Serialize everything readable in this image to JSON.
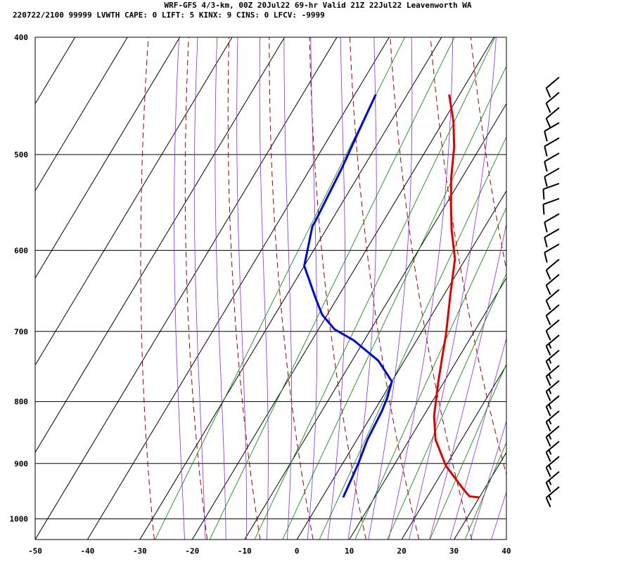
{
  "header": {
    "line1": "WRF-GFS 4/3-km, 00Z 20Jul22 69-hr Valid 21Z 22Jul22 Leavenworth WA",
    "line2": "220722/2100 99999  LVWTH   CAPE:     0 LIFT:     5 KINX:     9 CINS:     0 LFCV: -9999"
  },
  "colors": {
    "temperature": "#e00000",
    "dewpoint": "#0000e0",
    "dry_adiabat": "#990000",
    "moist_adiabat": "#8a2be2",
    "isotherm": "#000000",
    "mixing_ratio": "#008000"
  },
  "chart_data": {
    "type": "line",
    "chart_kind": "skew-T log-P sounding",
    "x_axis": {
      "range": [
        -50,
        40
      ],
      "ticks": [
        -50,
        -40,
        -30,
        -20,
        -10,
        0,
        10,
        20,
        30,
        40
      ],
      "ticklabels": [
        "-50",
        "-40",
        "-30",
        "-20",
        "-10",
        "0",
        "10",
        "20",
        "30",
        "40"
      ]
    },
    "y_axis": {
      "scale": "log",
      "reversed": true,
      "range": [
        1040,
        400
      ],
      "ticks": [
        400,
        500,
        600,
        700,
        800,
        900,
        1000
      ],
      "ticklabels": [
        "400",
        "500",
        "600",
        "700",
        "800",
        "900",
        "1000"
      ]
    },
    "grid": true,
    "series": [
      {
        "key": "temperature",
        "points": [
          [
            30,
            960
          ],
          [
            28,
            958
          ],
          [
            26,
            945
          ],
          [
            20,
            904
          ],
          [
            15,
            860
          ],
          [
            12,
            822
          ],
          [
            9,
            772
          ],
          [
            7,
            738
          ],
          [
            5,
            705
          ],
          [
            1,
            650
          ],
          [
            -2,
            610
          ],
          [
            -6,
            577
          ],
          [
            -9,
            550
          ],
          [
            -12,
            523
          ],
          [
            -15,
            493
          ],
          [
            -18,
            470
          ],
          [
            -22,
            446
          ]
        ]
      },
      {
        "key": "dewpoint",
        "points": [
          [
            4,
            960
          ],
          [
            3,
            900
          ],
          [
            2,
            860
          ],
          [
            1.5,
            815
          ],
          [
            1,
            795
          ],
          [
            0,
            770
          ],
          [
            -5,
            740
          ],
          [
            -12,
            712
          ],
          [
            -17,
            697
          ],
          [
            -21,
            678
          ],
          [
            -24,
            658
          ],
          [
            -30,
            618
          ],
          [
            -33,
            573
          ],
          [
            -33,
            568
          ],
          [
            -34,
            514
          ],
          [
            -35,
            480
          ],
          [
            -36,
            446
          ]
        ]
      }
    ],
    "wind_barbs": [
      {
        "direction": 230,
        "speed": 15
      },
      {
        "direction": 230,
        "speed": 15
      },
      {
        "direction": 230,
        "speed": 15
      },
      {
        "direction": 230,
        "speed": 15
      },
      {
        "direction": 230,
        "speed": 15
      },
      {
        "direction": 230,
        "speed": 15
      },
      {
        "direction": 230,
        "speed": 15
      },
      {
        "direction": 230,
        "speed": 15
      },
      {
        "direction": 230,
        "speed": 15
      },
      {
        "direction": 230,
        "speed": 15
      },
      {
        "direction": 230,
        "speed": 15
      },
      {
        "direction": 230,
        "speed": 10
      },
      {
        "direction": 230,
        "speed": 10
      },
      {
        "direction": 230,
        "speed": 10
      },
      {
        "direction": 230,
        "speed": 10
      },
      {
        "direction": 230,
        "speed": 10
      },
      {
        "direction": 240,
        "speed": 10
      },
      {
        "direction": 240,
        "speed": 10
      },
      {
        "direction": 240,
        "speed": 10
      },
      {
        "direction": 250,
        "speed": 10
      },
      {
        "direction": 250,
        "speed": 10
      },
      {
        "direction": 240,
        "speed": 10
      },
      {
        "direction": 240,
        "speed": 10
      },
      {
        "direction": 240,
        "speed": 10
      },
      {
        "direction": 240,
        "speed": 10
      },
      {
        "direction": 230,
        "speed": 10
      },
      {
        "direction": 230,
        "speed": 10
      },
      {
        "direction": 230,
        "speed": 10
      }
    ]
  }
}
